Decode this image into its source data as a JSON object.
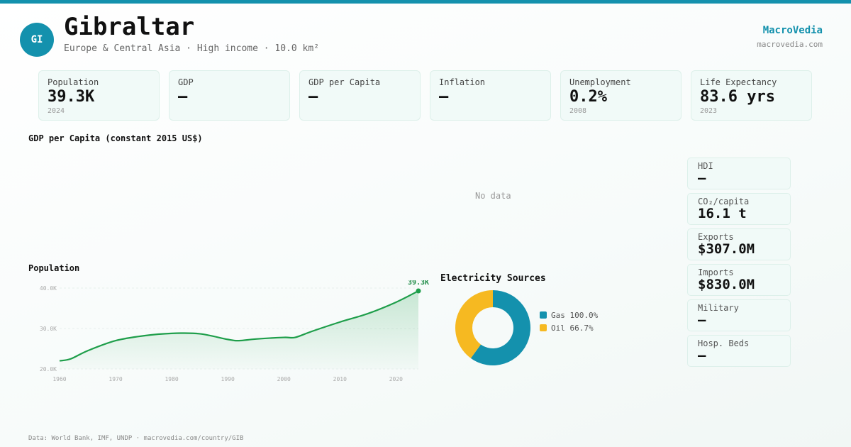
{
  "header": {
    "avatar_text": "GI",
    "title": "Gibraltar",
    "subtitle": "Europe & Central Asia · High income · 10.0 km²",
    "brand": "MacroVedia",
    "brand_url": "macrovedia.com"
  },
  "stats": [
    {
      "label": "Population",
      "value": "39.3K",
      "year": "2024"
    },
    {
      "label": "GDP",
      "value": "—",
      "year": ""
    },
    {
      "label": "GDP per Capita",
      "value": "—",
      "year": ""
    },
    {
      "label": "Inflation",
      "value": "—",
      "year": ""
    },
    {
      "label": "Unemployment",
      "value": "0.2%",
      "year": "2008"
    },
    {
      "label": "Life Expectancy",
      "value": "83.6 yrs",
      "year": "2023"
    }
  ],
  "gdp_section": {
    "title": "GDP per Capita (constant 2015 US$)",
    "nodata": "No data"
  },
  "population_section": {
    "title": "Population"
  },
  "electricity_section": {
    "title": "Electricity Sources"
  },
  "side_metrics": [
    {
      "label": "HDI",
      "value": "—"
    },
    {
      "label": "CO₂/capita",
      "value": "16.1 t"
    },
    {
      "label": "Exports",
      "value": "$307.0M"
    },
    {
      "label": "Imports",
      "value": "$830.0M"
    },
    {
      "label": "Military",
      "value": "—"
    },
    {
      "label": "Hosp. Beds",
      "value": "—"
    }
  ],
  "footer": {
    "text": "Data: World Bank, IMF, UNDP · macrovedia.com/country/GIB"
  },
  "colors": {
    "accent": "#1491ad",
    "line": "#1e9e4a",
    "gas": "#1491ad",
    "oil": "#f6b921"
  },
  "chart_data": [
    {
      "type": "area",
      "title": "Population",
      "x": [
        1960,
        1962,
        1965,
        1970,
        1975,
        1980,
        1985,
        1990,
        1992,
        1995,
        2000,
        2002,
        2005,
        2010,
        2015,
        2020,
        2024
      ],
      "y": [
        22000,
        22500,
        24500,
        27000,
        28200,
        28800,
        28700,
        27300,
        27000,
        27400,
        27800,
        27800,
        29300,
        31600,
        33700,
        36500,
        39300
      ],
      "xticks": [
        "1960",
        "1970",
        "1980",
        "1990",
        "2000",
        "2010",
        "2020"
      ],
      "yticks": [
        "20.0K",
        "30.0K",
        "40.0K"
      ],
      "ylim": [
        20000,
        40000
      ],
      "last_label": "39.3K"
    },
    {
      "type": "pie",
      "title": "Electricity Sources",
      "labels": [
        "Gas",
        "Oil"
      ],
      "legend": [
        "Gas 100.0%",
        "Oil 66.7%"
      ],
      "values": [
        100.0,
        66.7
      ]
    }
  ]
}
